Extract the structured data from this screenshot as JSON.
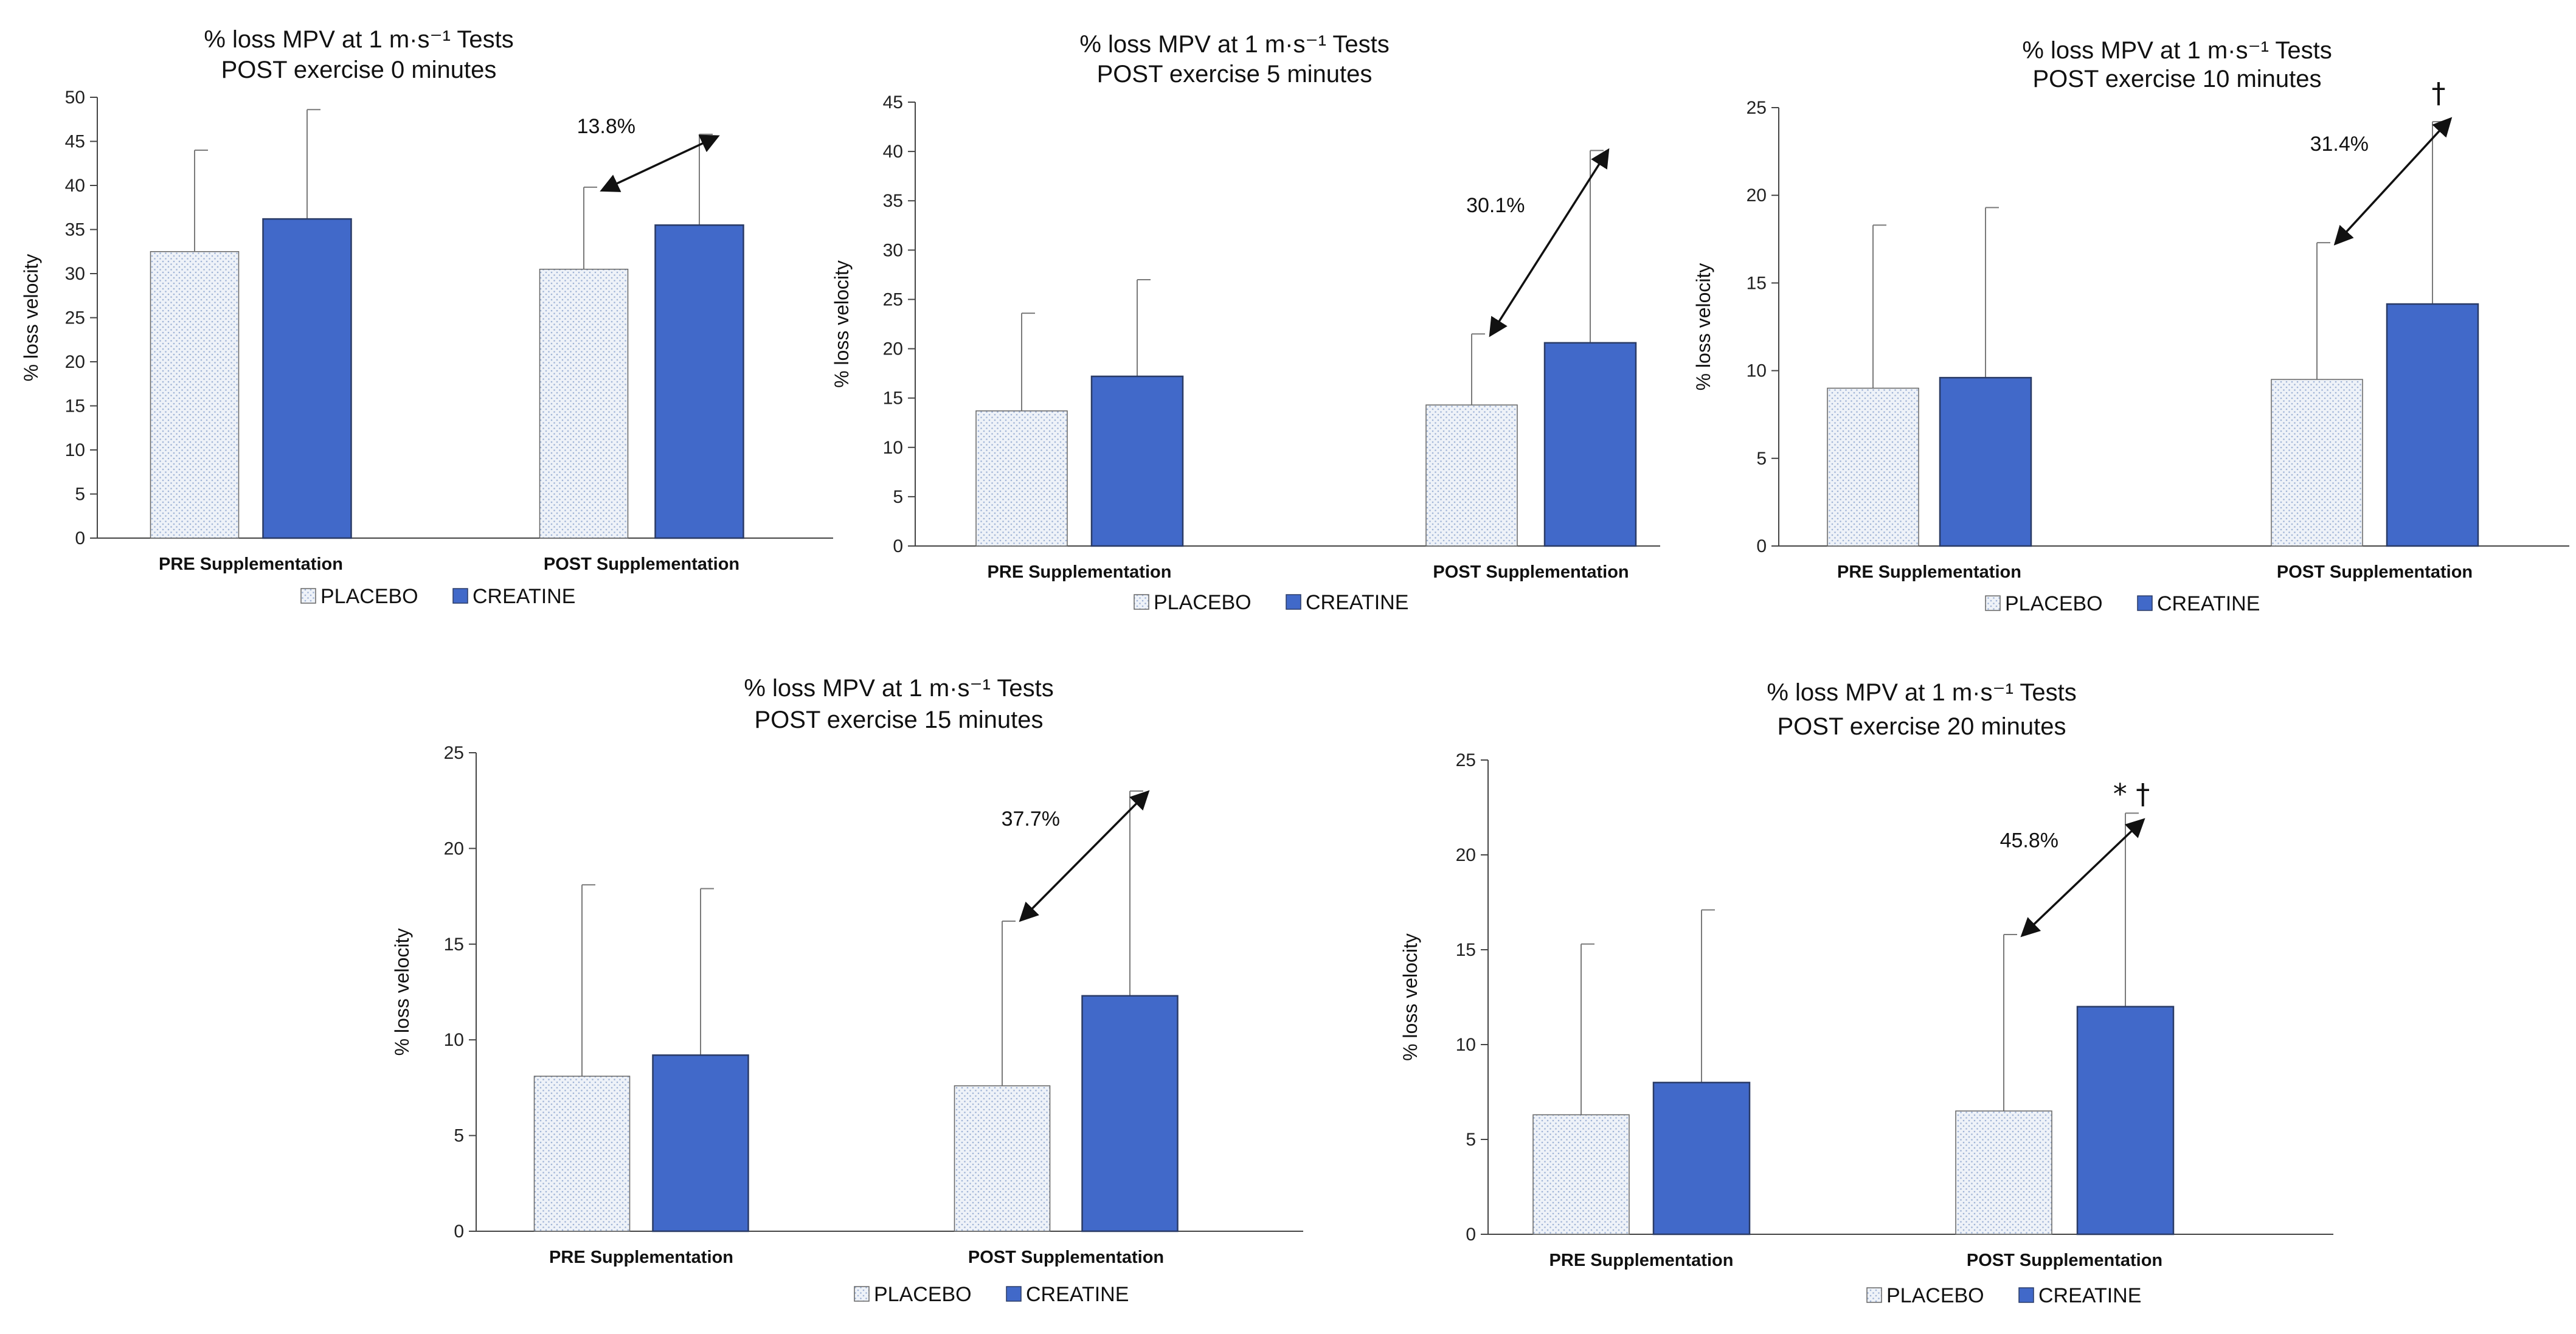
{
  "colors": {
    "placebo_fill": "#eef2f8",
    "placebo_dot": "#9fb3d6",
    "placebo_stroke": "#666666",
    "creatine_fill": "#4169c9",
    "creatine_stroke": "#2a3b66",
    "axis": "#444444",
    "error_bar": "#7a7a7a",
    "annotation_arrow": "#111111"
  },
  "chart_data": [
    {
      "type": "bar",
      "title": "% loss MPV at 1 m·s⁻¹ Tests",
      "subtitle": "POST exercise 0 minutes",
      "xlabel": "",
      "ylabel": "% loss velocity",
      "ylim": [
        0,
        50
      ],
      "ytick_step": 5,
      "yticks": [
        "0",
        "5",
        "10",
        "15",
        "20",
        "25",
        "30",
        "35",
        "40",
        "45",
        "50"
      ],
      "grid": false,
      "categories": [
        "PRE Supplementation",
        "POST Supplementation"
      ],
      "series": [
        {
          "name": "PLACEBO",
          "values": [
            32.5,
            30.5
          ],
          "error": [
            11.5,
            9.3
          ]
        },
        {
          "name": "CREATINE",
          "values": [
            36.2,
            35.5
          ],
          "error": [
            12.4,
            10.3
          ]
        }
      ],
      "legend": [
        "PLACEBO",
        "CREATINE"
      ],
      "legend_position": "bottom",
      "annotation": {
        "text": "13.8%",
        "category": "POST Supplementation",
        "from_value": 39.5,
        "to_value": 45.5
      },
      "significance": ""
    },
    {
      "type": "bar",
      "title": "% loss MPV at 1 m·s⁻¹ Tests",
      "subtitle": "POST exercise 5 minutes",
      "xlabel": "",
      "ylabel": "% loss velocity",
      "ylim": [
        0,
        45
      ],
      "ytick_step": 5,
      "yticks": [
        "0",
        "5",
        "10",
        "15",
        "20",
        "25",
        "30",
        "35",
        "40",
        "45"
      ],
      "grid": false,
      "categories": [
        "PRE Supplementation",
        "POST Supplementation"
      ],
      "series": [
        {
          "name": "PLACEBO",
          "values": [
            13.7,
            14.3
          ],
          "error": [
            9.9,
            7.2
          ]
        },
        {
          "name": "CREATINE",
          "values": [
            17.2,
            20.6
          ],
          "error": [
            9.8,
            19.5
          ]
        }
      ],
      "legend": [
        "PLACEBO",
        "CREATINE"
      ],
      "legend_position": "bottom",
      "annotation": {
        "text": "30.1%",
        "category": "POST Supplementation",
        "from_value": 21.5,
        "to_value": 40.0
      },
      "significance": ""
    },
    {
      "type": "bar",
      "title": "% loss MPV at 1 m·s⁻¹ Tests",
      "subtitle": "POST exercise 10 minutes",
      "xlabel": "",
      "ylabel": "% loss velocity",
      "ylim": [
        0,
        25
      ],
      "ytick_step": 5,
      "yticks": [
        "0",
        "5",
        "10",
        "15",
        "20",
        "25"
      ],
      "grid": false,
      "categories": [
        "PRE Supplementation",
        "POST Supplementation"
      ],
      "series": [
        {
          "name": "PLACEBO",
          "values": [
            9.0,
            9.5
          ],
          "error": [
            9.3,
            7.8
          ]
        },
        {
          "name": "CREATINE",
          "values": [
            9.6,
            13.8
          ],
          "error": [
            9.7,
            10.4
          ]
        }
      ],
      "legend": [
        "PLACEBO",
        "CREATINE"
      ],
      "legend_position": "bottom",
      "annotation": {
        "text": "31.4%",
        "category": "POST Supplementation",
        "from_value": 17.3,
        "to_value": 24.3
      },
      "significance": "†"
    },
    {
      "type": "bar",
      "title": "% loss MPV at 1 m·s⁻¹ Tests",
      "subtitle": "POST exercise 15 minutes",
      "xlabel": "",
      "ylabel": "% loss velocity",
      "ylim": [
        0,
        25
      ],
      "ytick_step": 5,
      "yticks": [
        "0",
        "5",
        "10",
        "15",
        "20",
        "25"
      ],
      "grid": false,
      "categories": [
        "PRE Supplementation",
        "POST Supplementation"
      ],
      "series": [
        {
          "name": "PLACEBO",
          "values": [
            8.1,
            7.6
          ],
          "error": [
            10.0,
            8.6
          ]
        },
        {
          "name": "CREATINE",
          "values": [
            9.2,
            12.3
          ],
          "error": [
            8.7,
            10.7
          ]
        }
      ],
      "legend": [
        "PLACEBO",
        "CREATINE"
      ],
      "legend_position": "bottom",
      "annotation": {
        "text": "37.7%",
        "category": "POST Supplementation",
        "from_value": 16.3,
        "to_value": 22.9
      },
      "significance": ""
    },
    {
      "type": "bar",
      "title": "% loss MPV at 1 m·s⁻¹ Tests",
      "subtitle": "POST exercise 20 minutes",
      "xlabel": "",
      "ylabel": "% loss velocity",
      "ylim": [
        0,
        25
      ],
      "ytick_step": 5,
      "yticks": [
        "0",
        "5",
        "10",
        "15",
        "20",
        "25"
      ],
      "grid": false,
      "categories": [
        "PRE Supplementation",
        "POST Supplementation"
      ],
      "series": [
        {
          "name": "PLACEBO",
          "values": [
            6.3,
            6.5
          ],
          "error": [
            9.0,
            9.3
          ]
        },
        {
          "name": "CREATINE",
          "values": [
            8.0,
            12.0
          ],
          "error": [
            9.1,
            10.2
          ]
        }
      ],
      "legend": [
        "PLACEBO",
        "CREATINE"
      ],
      "legend_position": "bottom",
      "annotation": {
        "text": "45.8%",
        "category": "POST Supplementation",
        "from_value": 15.8,
        "to_value": 21.8
      },
      "significance": "* †"
    }
  ]
}
